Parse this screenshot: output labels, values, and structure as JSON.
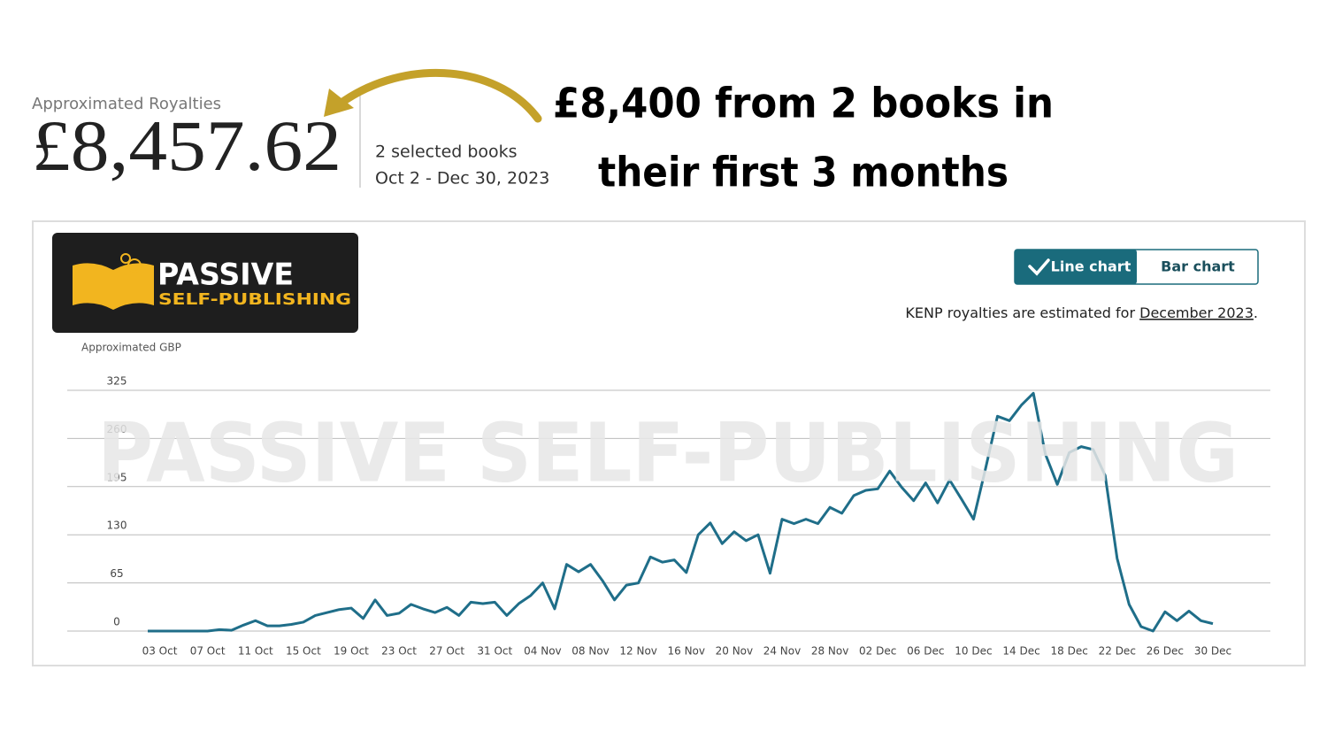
{
  "header": {
    "label": "Approximated Royalties",
    "amount": "£8,457.62",
    "books": "2 selected books",
    "dates": "Oct 2 - Dec 30, 2023"
  },
  "headline": [
    "£8,400 from 2 books in",
    "their first 3 months"
  ],
  "logo": {
    "line1": "PASSIVE",
    "line2": "SELF-PUBLISHING"
  },
  "toggle": {
    "options": [
      "Line chart",
      "Bar chart"
    ],
    "selected_index": 0
  },
  "note": {
    "text": "KENP royalties are estimated for ",
    "link": "December 2023",
    "end": "."
  },
  "watermark": "PASSIVE SELF-PUBLISHING",
  "chart_data": {
    "type": "line",
    "y_label": "Approximated GBP",
    "categories": [
      null,
      "03 Oct",
      null,
      null,
      null,
      "07 Oct",
      null,
      null,
      null,
      "11 Oct",
      null,
      null,
      null,
      "15 Oct",
      null,
      null,
      null,
      "19 Oct",
      null,
      null,
      null,
      "23 Oct",
      null,
      null,
      null,
      "27 Oct",
      null,
      null,
      null,
      "31 Oct",
      null,
      null,
      null,
      "04 Nov",
      null,
      null,
      null,
      "08 Nov",
      null,
      null,
      null,
      "12 Nov",
      null,
      null,
      null,
      "16 Nov",
      null,
      null,
      null,
      "20 Nov",
      null,
      null,
      null,
      "24 Nov",
      null,
      null,
      null,
      "28 Nov",
      null,
      null,
      null,
      "02 Dec",
      null,
      null,
      null,
      "06 Dec",
      null,
      null,
      null,
      "10 Dec",
      null,
      null,
      null,
      "14 Dec",
      null,
      null,
      null,
      "18 Dec",
      null,
      null,
      null,
      "22 Dec",
      null,
      null,
      null,
      "26 Dec",
      null,
      null,
      null,
      "30 Dec"
    ],
    "values": [
      0,
      0,
      0,
      0,
      0,
      0,
      2,
      1,
      8,
      14,
      7,
      7,
      9,
      12,
      21,
      25,
      29,
      31,
      17,
      42,
      21,
      24,
      36,
      30,
      25,
      32,
      21,
      39,
      37,
      39,
      21,
      37,
      48,
      65,
      30,
      90,
      80,
      90,
      68,
      42,
      62,
      65,
      100,
      93,
      96,
      79,
      130,
      146,
      118,
      134,
      122,
      130,
      78,
      151,
      145,
      151,
      145,
      167,
      159,
      183,
      190,
      192,
      216,
      194,
      176,
      200,
      173,
      204,
      178,
      151,
      219,
      290,
      284,
      305,
      321,
      239,
      198,
      241,
      249,
      245,
      210,
      98,
      36,
      6,
      0,
      26,
      14,
      27,
      14,
      10
    ],
    "color": "#1f6e89",
    "ylim": [
      0,
      325
    ],
    "yticks": [
      0,
      65,
      130,
      195,
      260,
      325
    ],
    "grid": true
  }
}
